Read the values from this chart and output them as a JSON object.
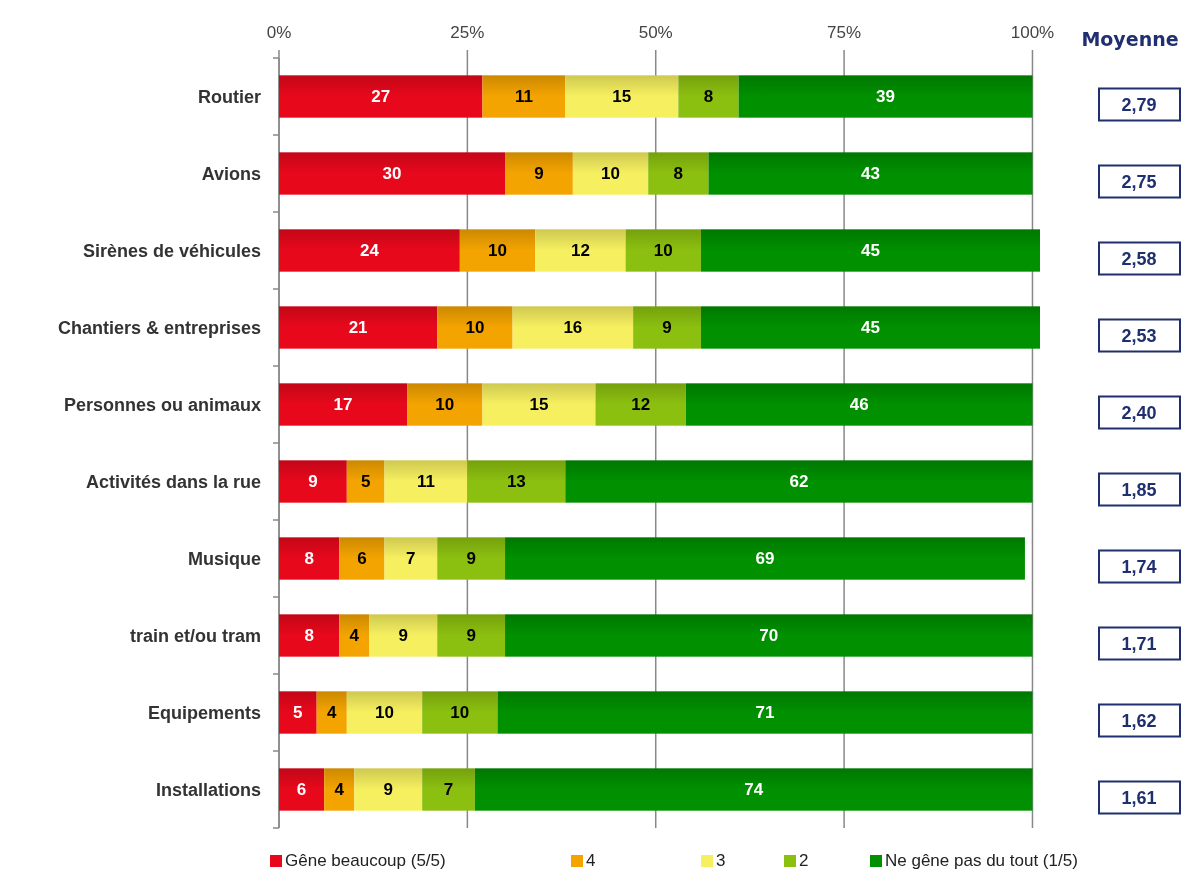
{
  "chart_data": {
    "type": "bar",
    "orientation": "horizontal",
    "stacked": true,
    "data_labels": true,
    "grid": "x",
    "legend": "bottom",
    "categories": [
      "Routier",
      "Avions",
      "Sirènes de véhicules",
      "Chantiers & entreprises",
      "Personnes ou animaux",
      "Activités dans la rue",
      "Musique",
      "train et/ou tram",
      "Equipements",
      "Installations"
    ],
    "series": [
      {
        "name": "Gêne beaucoup (5/5)",
        "color": "#e8081c",
        "values": [
          27,
          30,
          24,
          21,
          17,
          9,
          8,
          8,
          5,
          6
        ]
      },
      {
        "name": "4",
        "color": "#f4a400",
        "values": [
          11,
          9,
          10,
          10,
          10,
          5,
          6,
          4,
          4,
          4
        ]
      },
      {
        "name": "3",
        "color": "#f6f060",
        "values": [
          15,
          10,
          12,
          16,
          15,
          11,
          7,
          9,
          10,
          9
        ]
      },
      {
        "name": "2",
        "color": "#8cc010",
        "values": [
          8,
          8,
          10,
          9,
          12,
          13,
          9,
          9,
          10,
          7
        ]
      },
      {
        "name": "Ne gêne pas du tout (1/5)",
        "color": "#009000",
        "values": [
          39,
          43,
          45,
          45,
          46,
          62,
          69,
          70,
          71,
          74
        ]
      }
    ],
    "xlim": [
      0,
      101
    ],
    "xticks": [
      {
        "value": 0,
        "label": "0%"
      },
      {
        "value": 25,
        "label": "25%"
      },
      {
        "value": 50,
        "label": "50%"
      },
      {
        "value": 75,
        "label": "75%"
      },
      {
        "value": 100,
        "label": "100%"
      }
    ],
    "annotations": [
      "Moyenne",
      "2,79",
      "2,75",
      "2,58",
      "2,53",
      "2,40",
      "1,85",
      "1,74",
      "1,71",
      "1,62",
      "1,61"
    ]
  }
}
